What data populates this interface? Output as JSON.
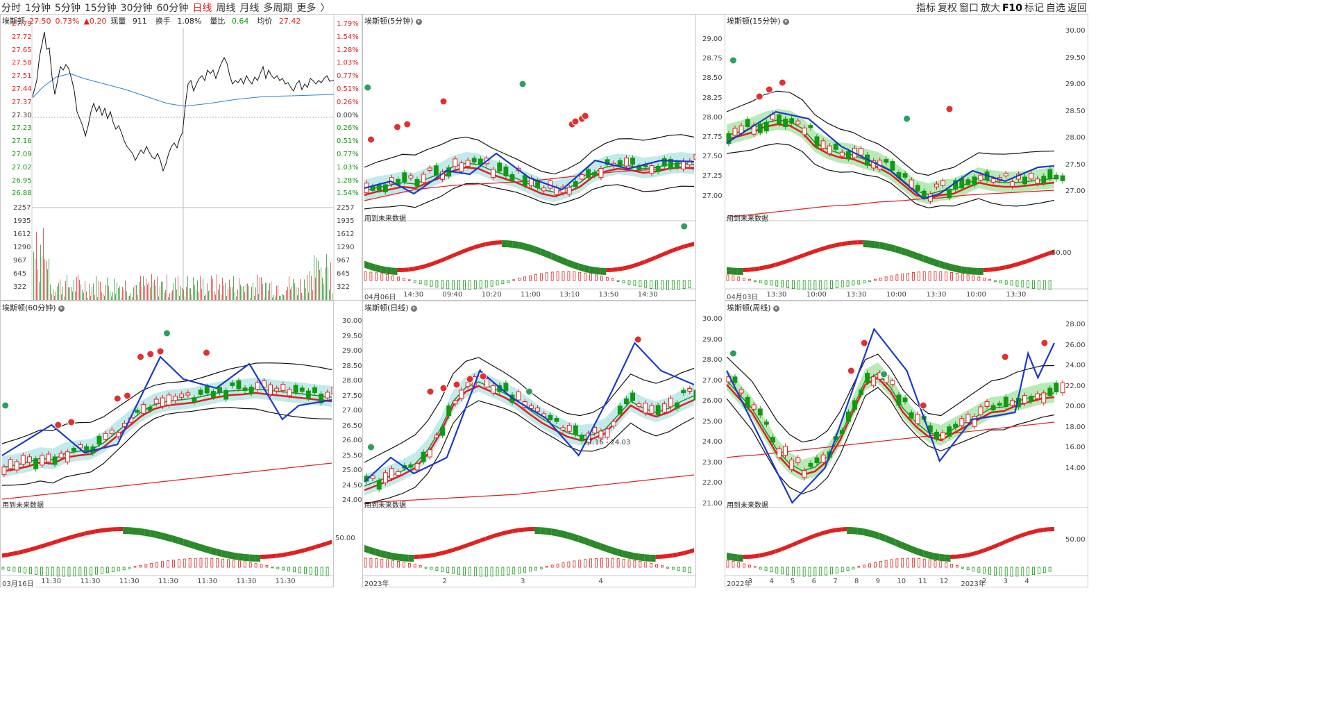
{
  "toolbar": {
    "periods": [
      "分时",
      "1分钟",
      "5分钟",
      "15分钟",
      "30分钟",
      "60分钟",
      "日线",
      "周线",
      "月线",
      "多周期",
      "更多"
    ],
    "more_chevron": "〉",
    "active": "日线",
    "right": [
      "指标",
      "复权",
      "窗口",
      "放大",
      "F10",
      "标记",
      "自选",
      "返回"
    ]
  },
  "timeshare": {
    "name": "埃斯顿",
    "price": "27.50",
    "change_pct": "0.73%",
    "change": "▲0.20",
    "volume_label": "现量",
    "volume": "911",
    "turnover_label": "换手",
    "turnover": "1.08%",
    "ratio_label": "量比",
    "ratio": "0.64",
    "avg_label": "均价",
    "avg": "27.42",
    "price_ticks": [
      "27.79",
      "27.72",
      "27.65",
      "27.58",
      "27.51",
      "27.44",
      "27.37",
      "27.30",
      "27.23",
      "27.16",
      "27.09",
      "27.02",
      "26.95",
      "26.88"
    ],
    "pct_ticks": [
      "1.79%",
      "1.54%",
      "1.28%",
      "1.03%",
      "0.77%",
      "0.51%",
      "0.26%",
      "0.00%",
      "0.26%",
      "0.51%",
      "0.77%",
      "1.03%",
      "1.28%",
      "1.54%"
    ],
    "vol_ticks": [
      "2257",
      "1935",
      "1612",
      "1290",
      "967",
      "645",
      "322"
    ]
  },
  "panels": {
    "m5": {
      "title": "埃斯顿(5分钟)",
      "future": "用到未来数据",
      "right_ticks": [],
      "dates": [
        "04月06日",
        "14:30",
        "09:40",
        "10:20",
        "11:00",
        "13:10",
        "13:50",
        "14:30"
      ]
    },
    "m15": {
      "title": "埃斯顿(15分钟)",
      "future": "用到未来数据",
      "right_ticks": [
        "30.00",
        "29.50",
        "29.00",
        "28.50",
        "28.00",
        "27.50",
        "27.00"
      ],
      "left_ticks": [
        "29.00",
        "28.75",
        "28.50",
        "28.25",
        "28.00",
        "27.75",
        "27.50",
        "27.25",
        "27.00"
      ],
      "osc_tick": "50.00",
      "dates": [
        "04月03日",
        "13:30",
        "10:00",
        "13:30",
        "10:00",
        "13:30",
        "10:00",
        "13:30"
      ]
    },
    "m60": {
      "title": "埃斯顿(60分钟)",
      "future": "用到未来数据",
      "dates": [
        "03月16日",
        "11:30",
        "11:30",
        "11:30",
        "11:30",
        "11:30",
        "11:30",
        "11:30"
      ]
    },
    "day": {
      "title": "埃斯顿(日线)",
      "future": "用到未来数据",
      "left_ticks": [
        "30.00",
        "29.50",
        "29.00",
        "28.50",
        "28.00",
        "27.50",
        "27.00",
        "26.50",
        "26.00",
        "25.50",
        "25.00",
        "24.50",
        "24.00"
      ],
      "osc_tick": "50.00",
      "annot": "27.16 - 24.03",
      "dates": [
        "2023年",
        "2",
        "3",
        "4"
      ]
    },
    "week": {
      "title": "埃斯顿(周线)",
      "future": "用到未来数据",
      "right_ticks": [
        "28.00",
        "26.00",
        "24.00",
        "22.00",
        "20.00",
        "18.00",
        "16.00",
        "14.00"
      ],
      "left_ticks": [
        "30.00",
        "29.00",
        "28.00",
        "27.00",
        "26.00",
        "25.00",
        "24.00",
        "23.00",
        "22.00",
        "21.00"
      ],
      "osc_tick": "50.00",
      "dates": [
        "2022年",
        "3",
        "4",
        "5",
        "6",
        "7",
        "8",
        "9",
        "10",
        "11",
        "12",
        "2023年",
        "2",
        "3",
        "4"
      ]
    }
  }
}
